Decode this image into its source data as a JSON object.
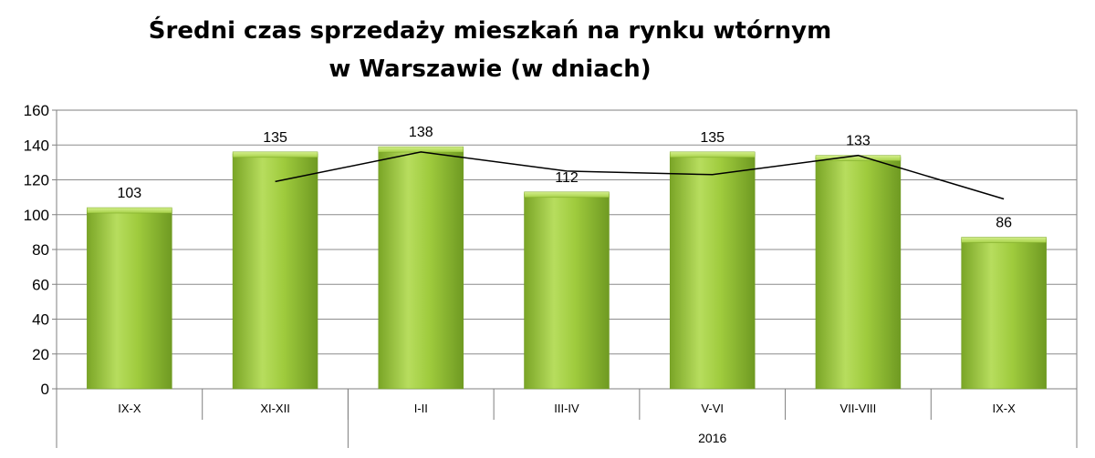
{
  "chart_data": {
    "type": "bar",
    "title": "Średni czas sprzedaży mieszkań na rynku wtórnym",
    "subtitle": "w Warszawie (w dniach)",
    "categories": [
      "IX-X",
      "XI-XII",
      "I-II",
      "III-IV",
      "V-VI",
      "VII-VIII",
      "IX-X"
    ],
    "category_groups": [
      {
        "label": "",
        "start": 0,
        "end": 1
      },
      {
        "label": "2016",
        "start": 2,
        "end": 6
      }
    ],
    "series": [
      {
        "type": "bar",
        "values": [
          103,
          135,
          138,
          112,
          135,
          133,
          86
        ],
        "color": "#8fbf2f"
      },
      {
        "type": "line",
        "values": [
          null,
          119,
          136,
          125,
          123,
          134,
          109
        ],
        "color": "#000000"
      }
    ],
    "data_labels": [
      "103",
      "135",
      "138",
      "112",
      "135",
      "133",
      "86"
    ],
    "ylim": [
      0,
      160
    ],
    "yticks": [
      "0",
      "20",
      "40",
      "60",
      "80",
      "100",
      "120",
      "140",
      "160"
    ],
    "grid": true,
    "legend": "none"
  }
}
